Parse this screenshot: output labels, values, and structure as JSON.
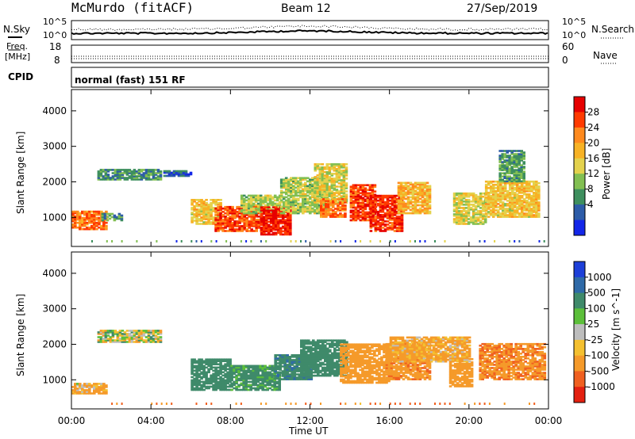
{
  "header": {
    "station": "McMurdo (fitACF)",
    "beam": "Beam 12",
    "date": "27/Sep/2019"
  },
  "noise_panel": {
    "left_label": "N.Sky",
    "right_label": "N.Search",
    "left_ticks": [
      "10^5",
      "10^0"
    ],
    "right_ticks": [
      "10^5",
      "10^0"
    ]
  },
  "freq_panel": {
    "left_label_line1": "Freq.",
    "left_label_line2": "[MHz]",
    "right_label": "Nave",
    "left_ticks": [
      "18",
      "8"
    ],
    "right_ticks": [
      "60",
      "0"
    ]
  },
  "cpid_panel": {
    "label": "CPID",
    "text": "normal (fast) 151 RF"
  },
  "power_panel": {
    "ylabel": "Slant Range [km]",
    "colorbar_label": "Power [dB]",
    "colorbar_ticks": [
      "28",
      "24",
      "20",
      "16",
      "12",
      "8",
      "4"
    ],
    "colorbar_colors": [
      "#e60000",
      "#ff3a00",
      "#ff8a1e",
      "#f7b225",
      "#e4d24d",
      "#82bf52",
      "#3e8f5e",
      "#2d5ca8",
      "#1326e8"
    ]
  },
  "velocity_panel": {
    "ylabel": "Slant Range [km]",
    "colorbar_label": "Velocity [m s^-1]",
    "colorbar_ticks": [
      "1000",
      "500",
      "100",
      "25",
      "-25",
      "-100",
      "-500",
      "-1000"
    ],
    "colorbar_colors": [
      "#1d3fd8",
      "#2f6aa8",
      "#3f8a6a",
      "#5cbf3a",
      "#bdbdbd",
      "#f4c030",
      "#f59a2a",
      "#f06020",
      "#e42010"
    ]
  },
  "xaxis": {
    "label": "Time UT",
    "ticks": [
      "00:00",
      "04:00",
      "08:00",
      "12:00",
      "16:00",
      "20:00",
      "00:00"
    ]
  },
  "chart_data": [
    {
      "type": "heatmap",
      "title": "Power [dB]",
      "xlabel": "",
      "ylabel": "Slant Range [km]",
      "xlim": [
        0,
        24
      ],
      "ylim": [
        180,
        4600
      ],
      "yticks": [
        1000,
        2000,
        3000,
        4000
      ],
      "color_range": [
        0,
        32
      ],
      "patches": [
        {
          "t0": 0.0,
          "t1": 1.7,
          "r0": 650,
          "r1": 1150,
          "v": 24
        },
        {
          "t0": 1.5,
          "t1": 2.5,
          "r0": 900,
          "r1": 1100,
          "v": 10
        },
        {
          "t0": 1.3,
          "t1": 4.5,
          "r0": 2050,
          "r1": 2350,
          "v": 9
        },
        {
          "t0": 4.5,
          "t1": 6.0,
          "r0": 2150,
          "r1": 2300,
          "v": 6
        },
        {
          "t0": 6.0,
          "t1": 7.5,
          "r0": 800,
          "r1": 1500,
          "v": 18
        },
        {
          "t0": 7.2,
          "t1": 9.5,
          "r0": 600,
          "r1": 1300,
          "v": 26
        },
        {
          "t0": 8.5,
          "t1": 10.5,
          "r0": 1100,
          "r1": 1600,
          "v": 14
        },
        {
          "t0": 9.5,
          "t1": 11.0,
          "r0": 500,
          "r1": 1300,
          "v": 29
        },
        {
          "t0": 10.5,
          "t1": 12.8,
          "r0": 1100,
          "r1": 2100,
          "v": 14
        },
        {
          "t0": 12.2,
          "t1": 13.8,
          "r0": 1400,
          "r1": 2500,
          "v": 16
        },
        {
          "t0": 12.5,
          "t1": 13.8,
          "r0": 1000,
          "r1": 1500,
          "v": 24
        },
        {
          "t0": 14.0,
          "t1": 15.3,
          "r0": 900,
          "r1": 1900,
          "v": 27
        },
        {
          "t0": 15.0,
          "t1": 16.6,
          "r0": 600,
          "r1": 1600,
          "v": 28
        },
        {
          "t0": 16.4,
          "t1": 18.0,
          "r0": 1100,
          "r1": 2000,
          "v": 20
        },
        {
          "t0": 19.2,
          "t1": 20.8,
          "r0": 800,
          "r1": 1700,
          "v": 16
        },
        {
          "t0": 20.8,
          "t1": 23.5,
          "r0": 1000,
          "r1": 2000,
          "v": 18
        },
        {
          "t0": 21.5,
          "t1": 22.8,
          "r0": 2000,
          "r1": 2900,
          "v": 10
        }
      ]
    },
    {
      "type": "heatmap",
      "title": "Velocity [m s^-1]",
      "xlabel": "Time UT",
      "ylabel": "Slant Range [km]",
      "xlim": [
        0,
        24
      ],
      "ylim": [
        180,
        4600
      ],
      "yticks": [
        1000,
        2000,
        3000,
        4000
      ],
      "color_range": [
        -1000,
        1000
      ],
      "patches": [
        {
          "t0": 0.0,
          "t1": 1.8,
          "r0": 600,
          "r1": 900,
          "v": -120
        },
        {
          "t0": 1.3,
          "t1": 4.5,
          "r0": 2050,
          "r1": 2400,
          "v": 0
        },
        {
          "t0": 6.0,
          "t1": 8.0,
          "r0": 700,
          "r1": 1600,
          "v": 300
        },
        {
          "t0": 8.0,
          "t1": 10.5,
          "r0": 700,
          "r1": 1400,
          "v": 200
        },
        {
          "t0": 10.2,
          "t1": 12.0,
          "r0": 1000,
          "r1": 1700,
          "v": 400
        },
        {
          "t0": 11.5,
          "t1": 13.8,
          "r0": 1100,
          "r1": 2100,
          "v": 250
        },
        {
          "t0": 13.5,
          "t1": 16.0,
          "r0": 900,
          "r1": 2000,
          "v": -300
        },
        {
          "t0": 15.8,
          "t1": 18.0,
          "r0": 1000,
          "r1": 2000,
          "v": -400
        },
        {
          "t0": 19.0,
          "t1": 20.2,
          "r0": 800,
          "r1": 1600,
          "v": -350
        },
        {
          "t0": 20.5,
          "t1": 23.8,
          "r0": 1000,
          "r1": 2000,
          "v": -450
        },
        {
          "t0": 16.0,
          "t1": 20.0,
          "r0": 1500,
          "r1": 2200,
          "v": -150
        }
      ]
    }
  ]
}
